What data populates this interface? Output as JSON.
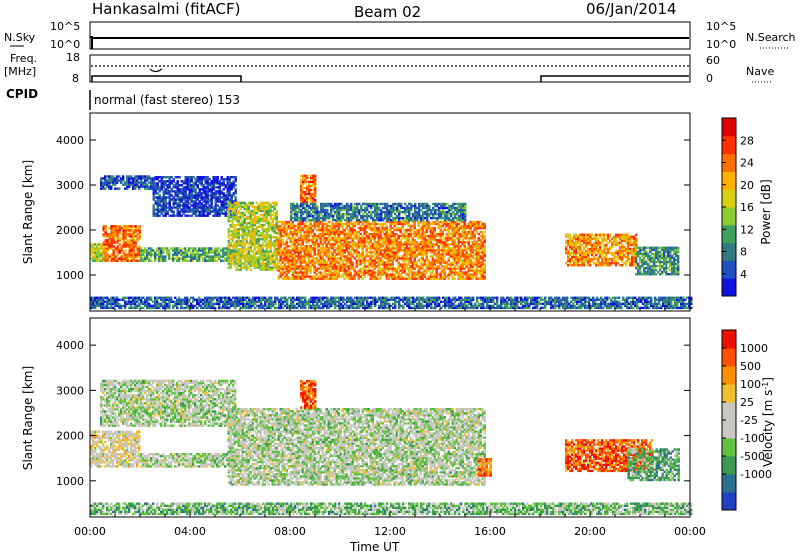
{
  "header": {
    "station": "Hankasalmi (fitACF)",
    "beam": "Beam 02",
    "date": "06/Jan/2014"
  },
  "top_panels": {
    "nsky_label": "N.Sky",
    "nsearch_label": "N.Search",
    "nsky_ticks": [
      "10^5",
      "10^0"
    ],
    "nsearch_ticks": [
      "10^5",
      "10^0"
    ],
    "freq_label_top": "Freq.",
    "freq_label_bottom": "[MHz]",
    "freq_ticks": [
      "18",
      "8"
    ],
    "nave_label": "Nave",
    "nave_ticks": [
      "60",
      "0"
    ],
    "cpid_label": "CPID",
    "cpid_text": "normal (fast stereo) 153"
  },
  "chart_data": [
    {
      "type": "heatmap",
      "name": "power",
      "xlabel": "",
      "ylabel": "Slant Range [km]",
      "ylim": [
        200,
        4600
      ],
      "yticks": [
        1000,
        2000,
        3000,
        4000
      ],
      "xlim_hours": [
        0,
        24
      ],
      "colorbar": {
        "label": "Power [dB]",
        "ticks": [
          "4",
          "8",
          "12",
          "16",
          "20",
          "24",
          "28"
        ],
        "colors": [
          "#1010e0",
          "#2050c0",
          "#307a80",
          "#40a060",
          "#8ccc30",
          "#d8d010",
          "#ffb000",
          "#ff7000",
          "#ff3000",
          "#e00000"
        ]
      },
      "regions": [
        {
          "t": [
            0.0,
            0.5
          ],
          "r": [
            1300,
            1700
          ],
          "v": 0.5
        },
        {
          "t": [
            0.5,
            2.0
          ],
          "r": [
            1300,
            2100
          ],
          "v": 0.75
        },
        {
          "t": [
            2.0,
            5.8
          ],
          "r": [
            1300,
            1600
          ],
          "v": 0.35
        },
        {
          "t": [
            0.4,
            2.5
          ],
          "r": [
            2900,
            3200
          ],
          "v": 0.15
        },
        {
          "t": [
            2.5,
            5.8
          ],
          "r": [
            2300,
            3200
          ],
          "v": 0.12
        },
        {
          "t": [
            5.5,
            7.5
          ],
          "r": [
            1100,
            2600
          ],
          "v": 0.5
        },
        {
          "t": [
            7.5,
            15.8
          ],
          "r": [
            900,
            2200
          ],
          "v": 0.72
        },
        {
          "t": [
            8.4,
            9.0
          ],
          "r": [
            2600,
            3200
          ],
          "v": 0.75
        },
        {
          "t": [
            8.0,
            15.0
          ],
          "r": [
            2200,
            2600
          ],
          "v": 0.25
        },
        {
          "t": [
            19.0,
            21.8
          ],
          "r": [
            1200,
            1900
          ],
          "v": 0.7
        },
        {
          "t": [
            21.8,
            23.5
          ],
          "r": [
            1000,
            1600
          ],
          "v": 0.3
        },
        {
          "t": [
            0.0,
            24.0
          ],
          "r": [
            250,
            500
          ],
          "v": 0.2
        }
      ]
    },
    {
      "type": "heatmap",
      "name": "velocity",
      "xlabel": "Time UT",
      "ylabel": "Slant Range [km]",
      "ylim": [
        200,
        4600
      ],
      "yticks": [
        1000,
        2000,
        3000,
        4000
      ],
      "xticks": [
        "00:00",
        "04:00",
        "08:00",
        "12:00",
        "16:00",
        "20:00",
        "00:00"
      ],
      "xlim_hours": [
        0,
        24
      ],
      "colorbar": {
        "label": "Velocity [m s-1]",
        "ticks": [
          "1000",
          "500",
          "100",
          "25",
          "-25",
          "-100",
          "-500",
          "-1000"
        ],
        "colors": [
          "#2040c0",
          "#2a7090",
          "#3a9a50",
          "#60c040",
          "#c8c8c0",
          "#c8c8c0",
          "#f0c030",
          "#ff9000",
          "#ff5000",
          "#ee1000"
        ]
      },
      "regions": [
        {
          "t": [
            0.0,
            2.0
          ],
          "r": [
            1300,
            2100
          ],
          "v": 0.55
        },
        {
          "t": [
            2.0,
            5.8
          ],
          "r": [
            1300,
            1600
          ],
          "v": 0.45
        },
        {
          "t": [
            0.4,
            5.8
          ],
          "r": [
            2200,
            3200
          ],
          "v": 0.45
        },
        {
          "t": [
            5.5,
            15.8
          ],
          "r": [
            900,
            2600
          ],
          "v": 0.45
        },
        {
          "t": [
            8.4,
            9.0
          ],
          "r": [
            2600,
            3200
          ],
          "v": 0.85
        },
        {
          "t": [
            15.5,
            16.0
          ],
          "r": [
            1100,
            1500
          ],
          "v": 0.8
        },
        {
          "t": [
            19.0,
            22.5
          ],
          "r": [
            1200,
            1900
          ],
          "v": 0.85
        },
        {
          "t": [
            21.5,
            23.5
          ],
          "r": [
            1000,
            1700
          ],
          "v": 0.3
        },
        {
          "t": [
            0.0,
            24.0
          ],
          "r": [
            250,
            500
          ],
          "v": 0.35
        }
      ]
    }
  ]
}
